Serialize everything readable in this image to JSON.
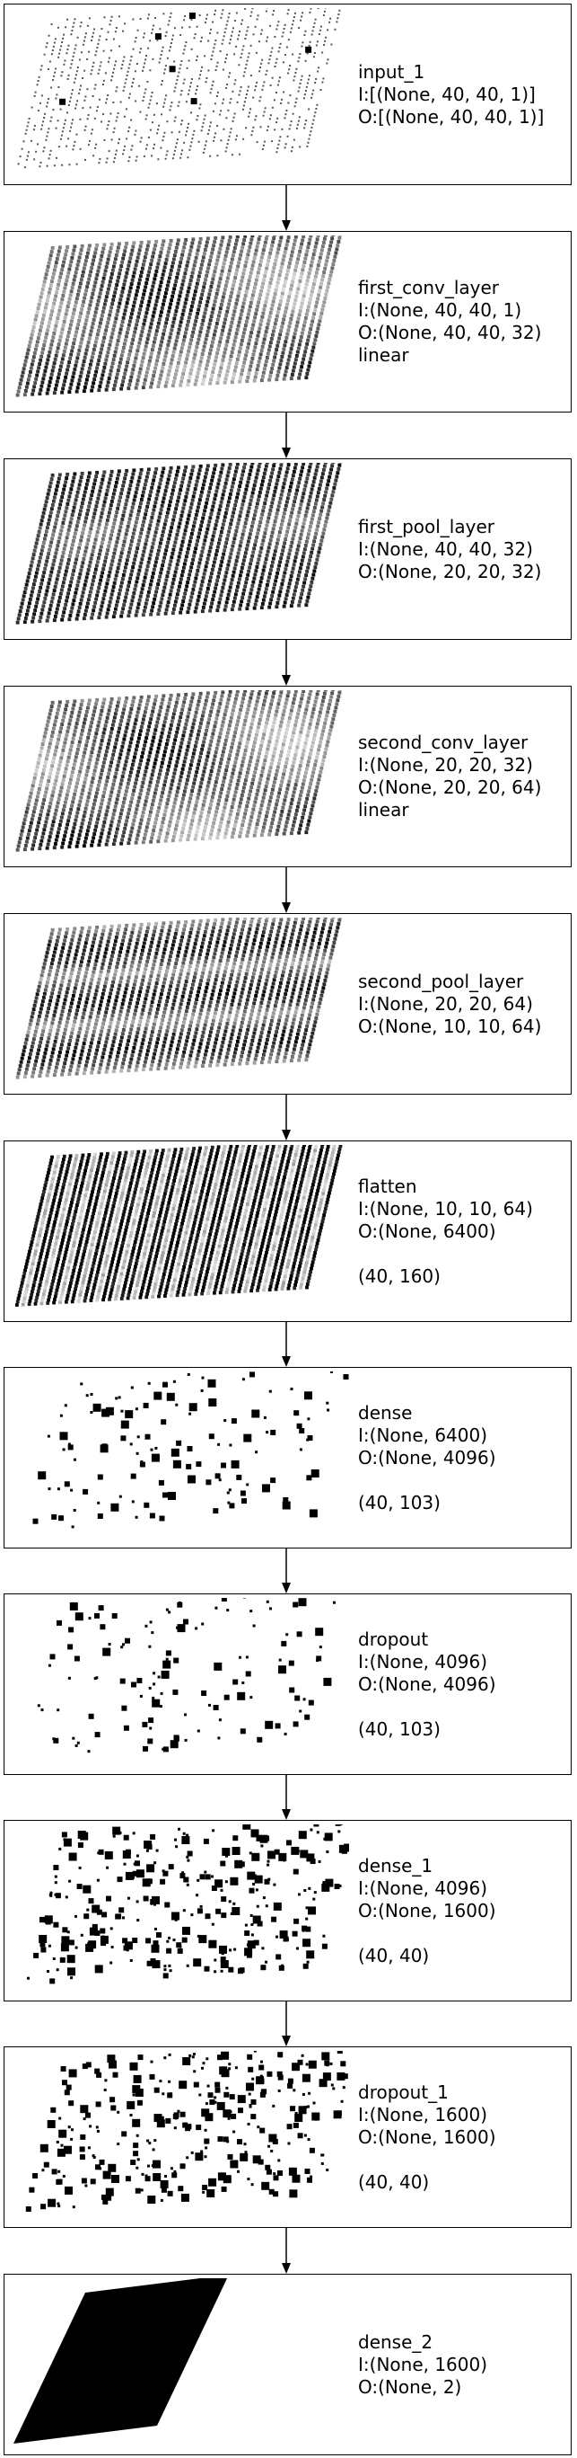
{
  "layers": [
    {
      "name": "input_1",
      "input_shape": "I:[(None, 40, 40, 1)]",
      "output_shape": "O:[(None, 40, 40, 1)]",
      "activation": "",
      "reshape": "",
      "viz": "sparse-grid-light"
    },
    {
      "name": "first_conv_layer",
      "input_shape": "I:(None, 40, 40, 1)",
      "output_shape": "O:(None, 40, 40, 32)",
      "activation": "linear",
      "reshape": "",
      "viz": "dense-grid-mottled"
    },
    {
      "name": "first_pool_layer",
      "input_shape": "I:(None, 40, 40, 32)",
      "output_shape": "O:(None, 20, 20, 32)",
      "activation": "",
      "reshape": "",
      "viz": "dense-grid-dark"
    },
    {
      "name": "second_conv_layer",
      "input_shape": "I:(None, 20, 20, 32)",
      "output_shape": "O:(None, 20, 20, 64)",
      "activation": "linear",
      "reshape": "",
      "viz": "dense-grid-mottled"
    },
    {
      "name": "second_pool_layer",
      "input_shape": "I:(None, 20, 20, 64)",
      "output_shape": "O:(None, 10, 10, 64)",
      "activation": "",
      "reshape": "",
      "viz": "dense-grid-banded"
    },
    {
      "name": "flatten",
      "input_shape": "I:(None, 10, 10, 64)",
      "output_shape": "O:(None, 6400)",
      "activation": "",
      "reshape": "(40, 160)",
      "viz": "dense-grid-striped"
    },
    {
      "name": "dense",
      "input_shape": "I:(None, 6400)",
      "output_shape": "O:(None, 4096)",
      "activation": "",
      "reshape": "(40, 103)",
      "viz": "scattered-squares-sparse"
    },
    {
      "name": "dropout",
      "input_shape": "I:(None, 4096)",
      "output_shape": "O:(None, 4096)",
      "activation": "",
      "reshape": "(40, 103)",
      "viz": "scattered-squares-sparse"
    },
    {
      "name": "dense_1",
      "input_shape": "I:(None, 4096)",
      "output_shape": "O:(None, 1600)",
      "activation": "",
      "reshape": "(40, 40)",
      "viz": "scattered-squares-dense"
    },
    {
      "name": "dropout_1",
      "input_shape": "I:(None, 1600)",
      "output_shape": "O:(None, 1600)",
      "activation": "",
      "reshape": "(40, 40)",
      "viz": "scattered-squares-dense"
    },
    {
      "name": "dense_2",
      "input_shape": "I:(None, 1600)",
      "output_shape": "O:(None, 2)",
      "activation": "",
      "reshape": "",
      "viz": "solid-block"
    }
  ],
  "colors": {
    "ink": "#000000",
    "background": "#ffffff"
  }
}
